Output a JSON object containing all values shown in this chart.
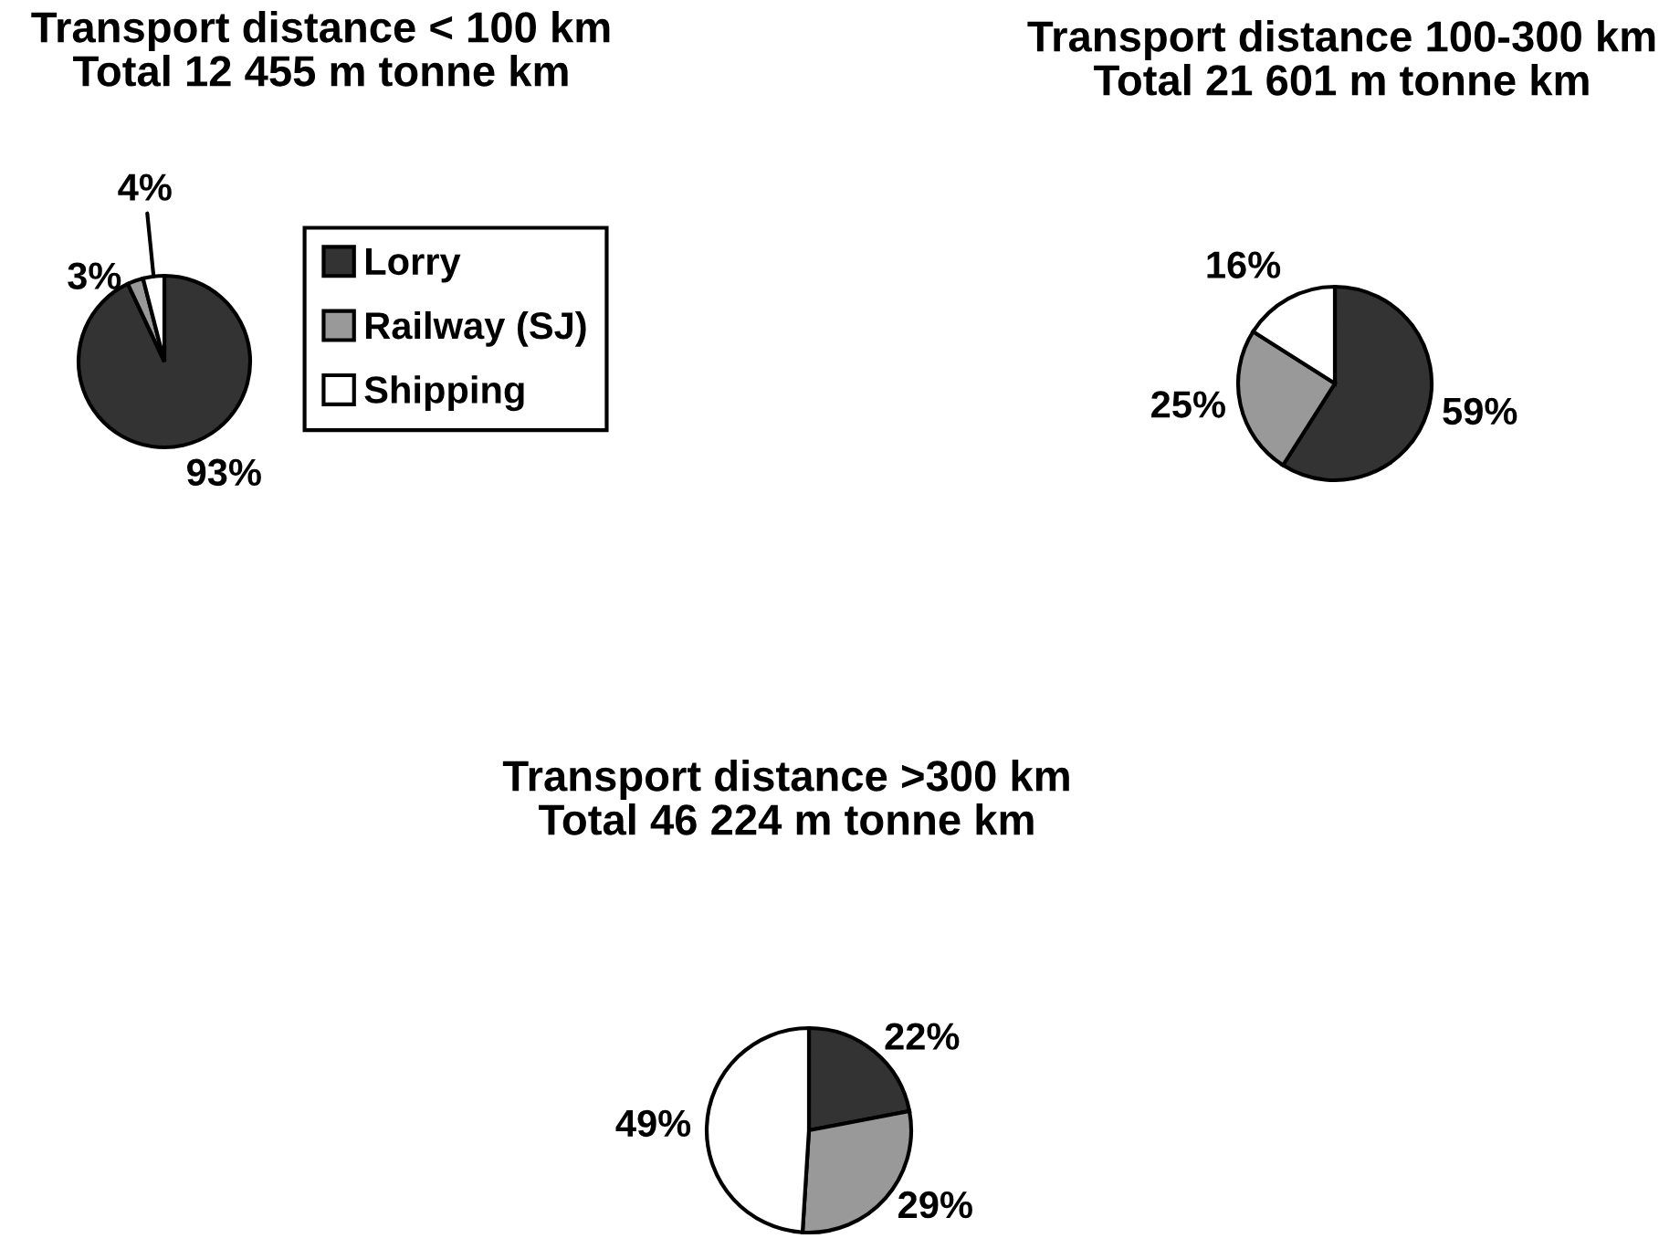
{
  "chart_data": [
    {
      "type": "pie",
      "title": "Transport distance < 100 km",
      "subtitle": "Total 12 455 m tonne km",
      "categories": [
        "Lorry",
        "Railway (SJ)",
        "Shipping"
      ],
      "values": [
        93,
        3,
        4
      ],
      "value_labels": [
        "93%",
        "3%",
        "4%"
      ],
      "colors": [
        "#333333",
        "#999999",
        "#ffffff"
      ],
      "legend": "right"
    },
    {
      "type": "pie",
      "title": "Transport distance 100-300 km",
      "subtitle": "Total 21 601 m tonne km",
      "categories": [
        null,
        null,
        null
      ],
      "values": [
        59,
        25,
        16
      ],
      "value_labels": [
        "59%",
        "25%",
        "16%"
      ],
      "colors": [
        "#333333",
        "#999999",
        "#ffffff"
      ]
    },
    {
      "type": "pie",
      "title": "Transport distance >300 km",
      "subtitle": "Total 46 224 m tonne km",
      "categories": [
        null,
        null,
        null
      ],
      "values": [
        22,
        29,
        49
      ],
      "value_labels": [
        "22%",
        "29%",
        "49%"
      ],
      "colors": [
        "#333333",
        "#999999",
        "#ffffff"
      ]
    }
  ]
}
